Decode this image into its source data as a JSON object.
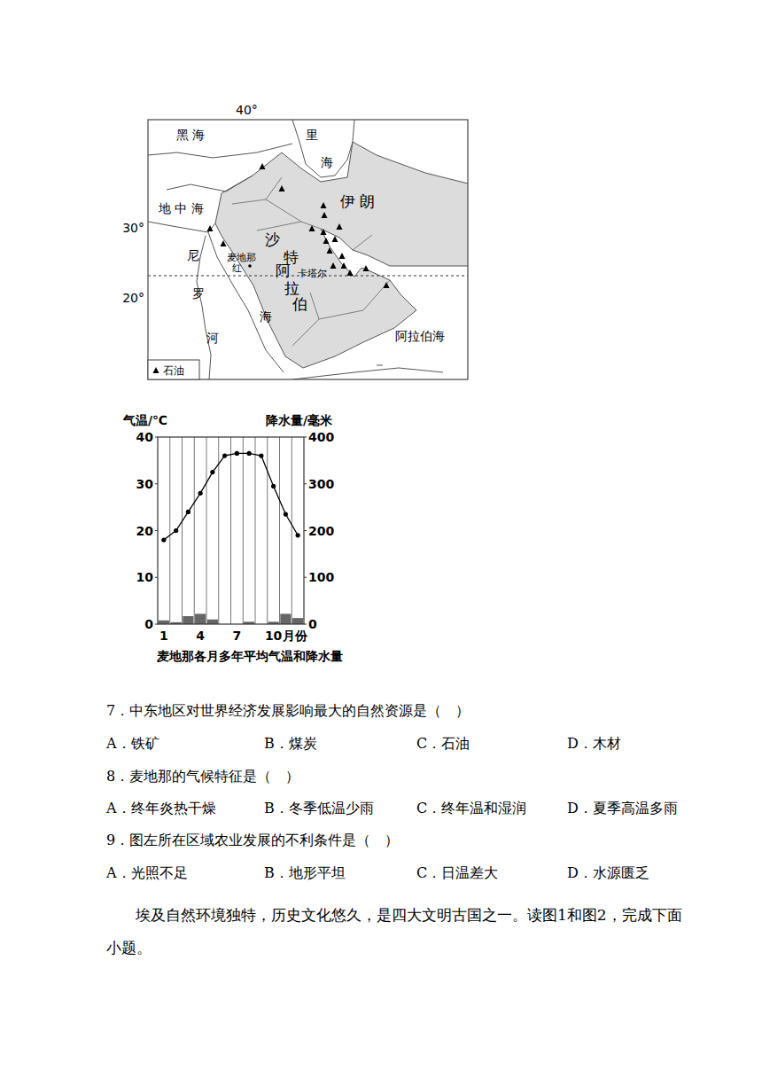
{
  "map": {
    "longitude_label": "40°",
    "latitude_labels": [
      "30°",
      "20°"
    ],
    "labels": [
      "黑 海",
      "里",
      "海",
      "伊 朗",
      "地 中 海",
      "沙",
      "特",
      "阿",
      "拉",
      "伯",
      "尼",
      "麦地那",
      "红",
      "卡塔尔",
      "罗",
      "海",
      "河",
      "阿拉伯海"
    ],
    "legend": "石油"
  },
  "chart_data": {
    "type": "bar",
    "title": "麦地那各月多年平均气温和降水量",
    "y_label": "气温/℃",
    "y2_label": "降水量/毫米",
    "x_label": "月份",
    "categories": [
      "1",
      null,
      null,
      "4",
      null,
      null,
      "7",
      null,
      null,
      "10",
      null,
      null
    ],
    "series": [
      {
        "name": "气温",
        "type": "line",
        "color": "#000000",
        "marker": "circle",
        "values": [
          18,
          20,
          24,
          28,
          32.5,
          36,
          36.5,
          36.5,
          36,
          29.5,
          23.5,
          19
        ]
      },
      {
        "name": "降水量",
        "type": "bar",
        "color": "#666666",
        "axis": "y2",
        "values": [
          8,
          4,
          17,
          22,
          10,
          0,
          0,
          5,
          0,
          5,
          22,
          13
        ]
      }
    ],
    "ylim": [
      0,
      40
    ],
    "yticks": [
      0,
      10,
      20,
      30,
      40
    ],
    "y2lim": [
      0,
      400
    ],
    "y2ticks": [
      0,
      100,
      200,
      300,
      400
    ],
    "grid": true
  },
  "questions": [
    {
      "stem": "7．中东地区对世界经济发展影响最大的自然资源是（　）",
      "options": [
        "A．铁矿",
        "B．煤炭",
        "C．石油",
        "D．木材"
      ]
    },
    {
      "stem": "8．麦地那的气候特征是（　）",
      "options": [
        "A．终年炎热干燥",
        "B．冬季低温少雨",
        "C．终年温和湿润",
        "D．夏季高温多雨"
      ]
    },
    {
      "stem": "9．图左所在区域农业发展的不利条件是（　）",
      "options": [
        "A．光照不足",
        "B．地形平坦",
        "C．日温差大",
        "D．水源匮乏"
      ]
    }
  ],
  "passage": [
    "埃及自然环境独特，历史文化悠久，是四大文明古国之一。读图1和图2，完成下面",
    "小题。"
  ]
}
